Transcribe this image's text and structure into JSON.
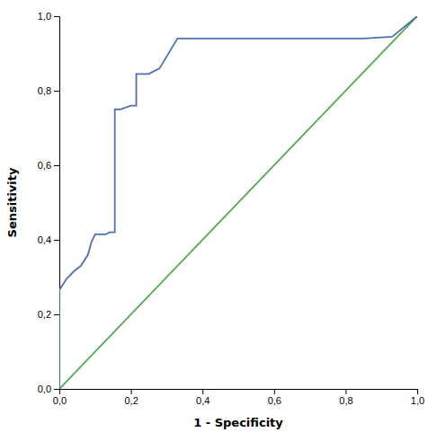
{
  "chart_data": {
    "type": "line",
    "xlabel": "1 - Specificity",
    "ylabel": "Sensitivity",
    "xlim": [
      0.0,
      1.0
    ],
    "ylim": [
      0.0,
      1.0
    ],
    "xticks": [
      {
        "value": 0.0,
        "label": "0,0"
      },
      {
        "value": 0.2,
        "label": "0,2"
      },
      {
        "value": 0.4,
        "label": "0,4"
      },
      {
        "value": 0.6,
        "label": "0,6"
      },
      {
        "value": 0.8,
        "label": "0,8"
      },
      {
        "value": 1.0,
        "label": "1,0"
      }
    ],
    "yticks": [
      {
        "value": 0.0,
        "label": "0,0"
      },
      {
        "value": 0.2,
        "label": "0,2"
      },
      {
        "value": 0.4,
        "label": "0,4"
      },
      {
        "value": 0.6,
        "label": "0,6"
      },
      {
        "value": 0.8,
        "label": "0,8"
      },
      {
        "value": 1.0,
        "label": "1,0"
      }
    ],
    "grid": false,
    "series": [
      {
        "color": "#50a850",
        "x": [
          0,
          1
        ],
        "values": [
          0,
          1
        ]
      },
      {
        "color": "#5070b0",
        "x": [
          0.0,
          0.0,
          0.02,
          0.04,
          0.06,
          0.08,
          0.09,
          0.1,
          0.11,
          0.13,
          0.14,
          0.155,
          0.155,
          0.17,
          0.2,
          0.215,
          0.215,
          0.25,
          0.28,
          0.33,
          0.38,
          0.43,
          0.5,
          0.85,
          0.93,
          1.0
        ],
        "values": [
          0.0,
          0.265,
          0.295,
          0.315,
          0.33,
          0.36,
          0.395,
          0.415,
          0.415,
          0.415,
          0.42,
          0.42,
          0.75,
          0.75,
          0.76,
          0.76,
          0.845,
          0.845,
          0.86,
          0.94,
          0.94,
          0.94,
          0.94,
          0.94,
          0.945,
          1.0
        ]
      }
    ]
  }
}
